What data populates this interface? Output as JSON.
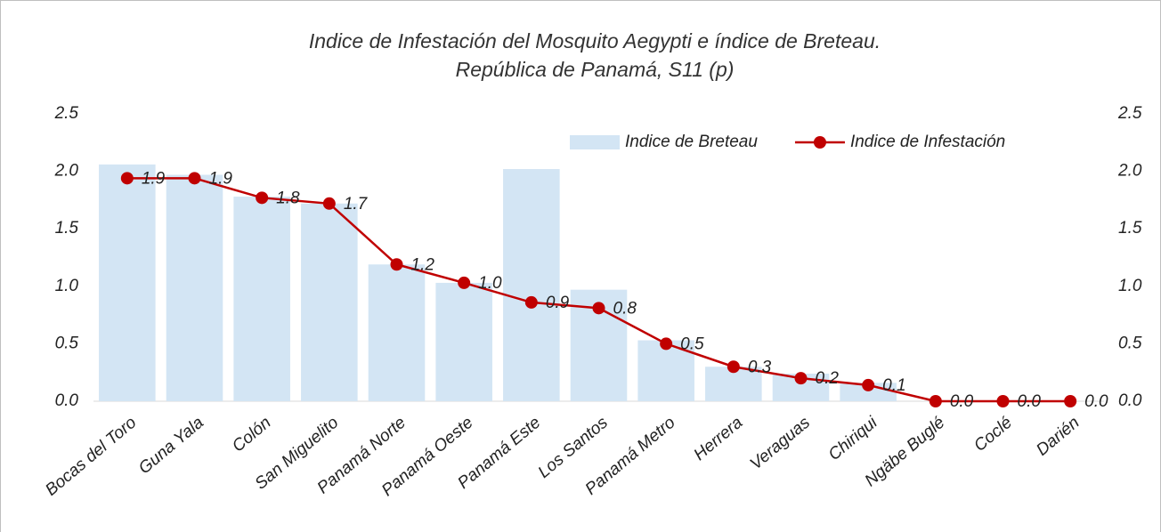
{
  "chart_data": {
    "type": "bar_line",
    "title": "Indice de Infestación del Mosquito Aegypti e índice de Breteau.",
    "subtitle": "República de Panamá, S11 (p)",
    "categories": [
      "Bocas del Toro",
      "Guna Yala",
      "Colón",
      "San Miguelito",
      "Panamá Norte",
      "Panamá Oeste",
      "Panamá Este",
      "Los Santos",
      "Panamá Metro",
      "Herrera",
      "Veraguas",
      "Chiriqui",
      "Ngäbe Buglé",
      "Coclé",
      "Darién"
    ],
    "series": [
      {
        "name": "Indice de Breteau",
        "type": "bar",
        "color": "#d3e5f4",
        "values": [
          2.06,
          1.97,
          1.78,
          1.72,
          1.19,
          1.03,
          2.02,
          0.97,
          0.53,
          0.3,
          0.24,
          0.16,
          0,
          0,
          0
        ]
      },
      {
        "name": "Indice de Infestación",
        "type": "line",
        "color": "#c00000",
        "axis": "y2",
        "values": [
          1.94,
          1.94,
          1.77,
          1.72,
          1.19,
          1.03,
          0.86,
          0.81,
          0.5,
          0.3,
          0.2,
          0.14,
          0,
          0,
          0
        ],
        "value_labels": [
          "1.9",
          "1.9",
          "1.8",
          "1.7",
          "1.2",
          "1.0",
          "0.9",
          "0.8",
          "0.5",
          "0.3",
          "0.2",
          "0.1",
          "0.0",
          "0.0",
          "0.0"
        ]
      }
    ],
    "ylim": [
      0,
      2.5
    ],
    "yticks": [
      {
        "value": 0,
        "label": "0.0"
      },
      {
        "value": 0.5,
        "label": "0.5"
      },
      {
        "value": 1,
        "label": "1.0"
      },
      {
        "value": 1.5,
        "label": "1.5"
      },
      {
        "value": 2,
        "label": "2.0"
      },
      {
        "value": 2.5,
        "label": "2.5"
      }
    ],
    "y2lim": [
      0,
      2.5
    ],
    "y2ticks": [
      {
        "value": 0,
        "label": "0.0"
      },
      {
        "value": 0.5,
        "label": "0.5"
      },
      {
        "value": 1,
        "label": "1.0"
      },
      {
        "value": 1.5,
        "label": "1.5"
      },
      {
        "value": 2,
        "label": "2.0"
      },
      {
        "value": 2.5,
        "label": "2.5"
      }
    ],
    "legend": "upper right"
  }
}
